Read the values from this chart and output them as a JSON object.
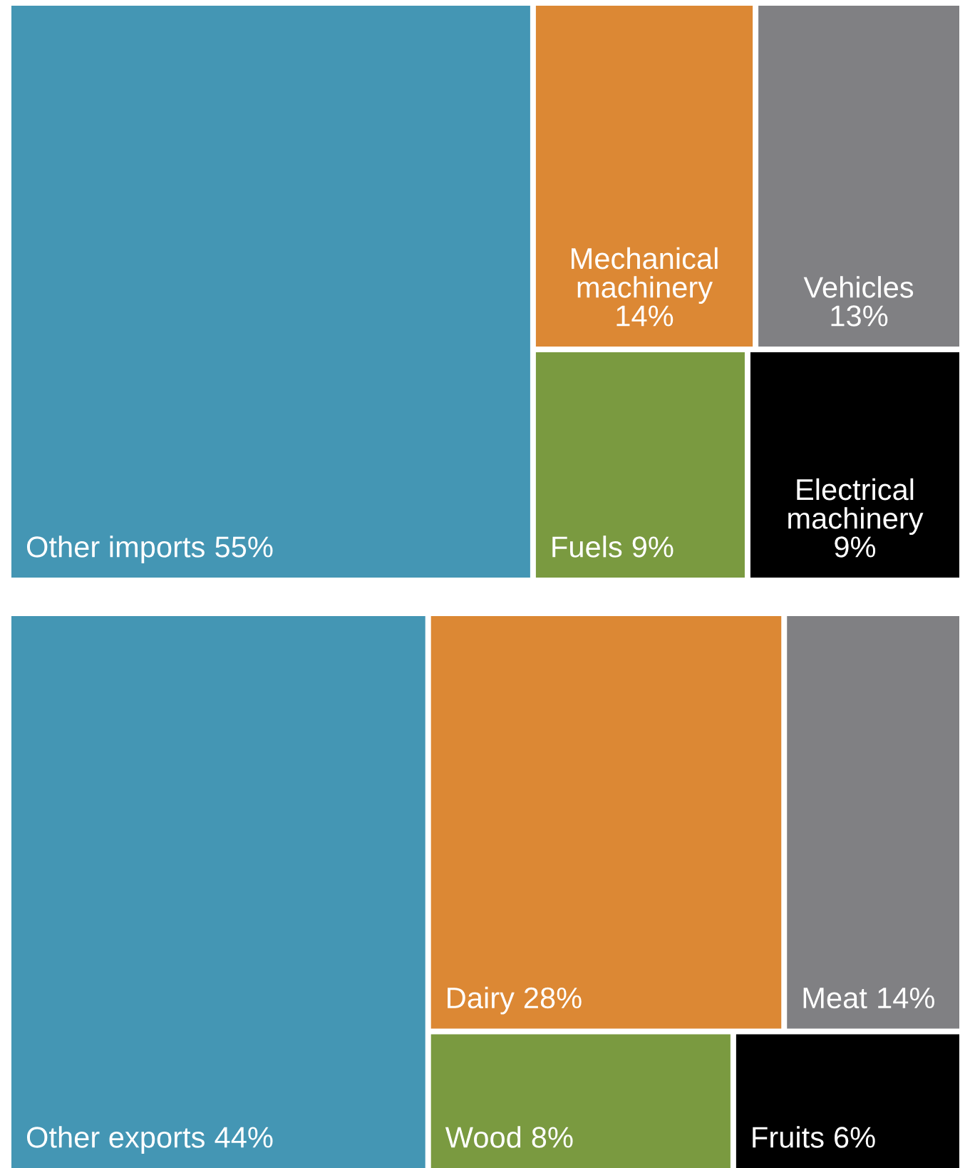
{
  "chart_data": [
    {
      "type": "other",
      "categories": [
        "Other imports",
        "Mechanical machinery",
        "Vehicles",
        "Fuels",
        "Electrical machinery"
      ],
      "values": [
        55,
        14,
        13,
        9,
        9
      ],
      "value_labels": [
        "55%",
        "14%",
        "13%",
        "9%",
        "9%"
      ],
      "colors": [
        "#4496b4",
        "#dc8834",
        "#808083",
        "#7a9a40",
        "#000000"
      ]
    },
    {
      "type": "other",
      "categories": [
        "Other exports",
        "Dairy",
        "Meat",
        "Wood",
        "Fruits"
      ],
      "values": [
        44,
        28,
        14,
        8,
        6
      ],
      "value_labels": [
        "44%",
        "28%",
        "14%",
        "8%",
        "6%"
      ],
      "colors": [
        "#4496b4",
        "#dc8834",
        "#808083",
        "#7a9a40",
        "#000000"
      ]
    }
  ]
}
